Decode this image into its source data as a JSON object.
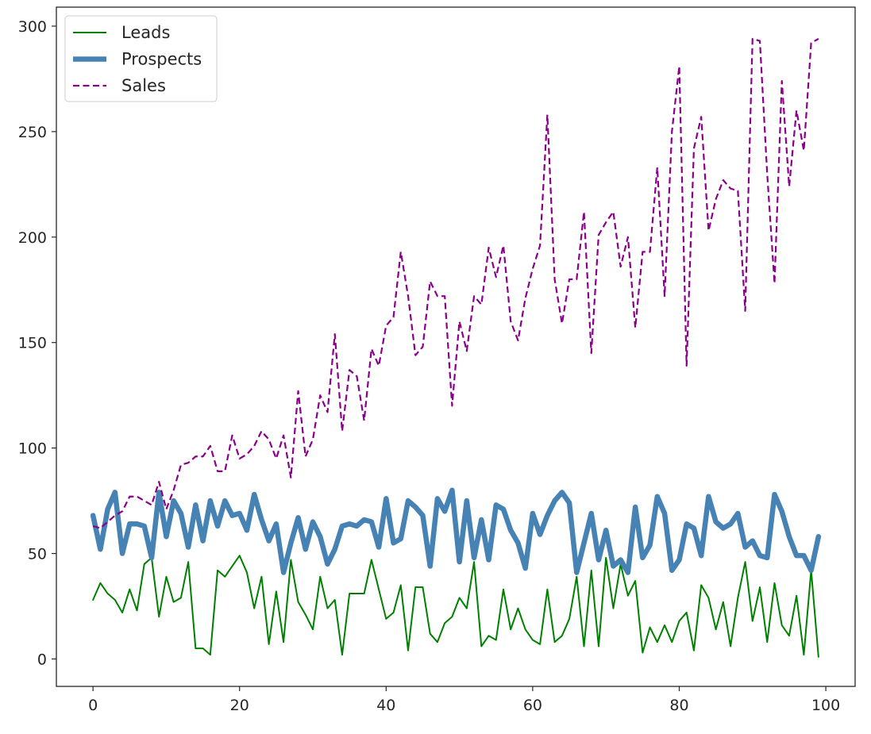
{
  "chart_data": {
    "type": "line",
    "title": "",
    "xlabel": "",
    "ylabel": "",
    "xlim": [
      -5,
      104
    ],
    "ylim": [
      -13,
      309
    ],
    "xticks": [
      0,
      20,
      40,
      60,
      80,
      100
    ],
    "yticks": [
      0,
      50,
      100,
      150,
      200,
      250,
      300
    ],
    "xtick_labels": [
      "0",
      "20",
      "40",
      "60",
      "80",
      "100"
    ],
    "ytick_labels": [
      "0",
      "50",
      "100",
      "150",
      "200",
      "250",
      "300"
    ],
    "grid": false,
    "legend_position": "upper-left",
    "series": [
      {
        "name": "Leads",
        "color": "#008000",
        "style": "solid",
        "x_start": 0,
        "values": [
          28,
          36,
          31,
          28,
          22,
          33,
          23,
          45,
          48,
          20,
          39,
          27,
          29,
          46,
          5,
          5,
          2,
          42,
          39,
          44,
          49,
          41,
          24,
          39,
          7,
          32,
          8,
          47,
          27,
          21,
          14,
          39,
          24,
          28,
          2,
          31,
          31,
          31,
          47,
          33,
          19,
          22,
          35,
          4,
          34,
          34,
          12,
          8,
          17,
          20,
          29,
          24,
          46,
          6,
          11,
          9,
          33,
          14,
          24,
          14,
          9,
          7,
          33,
          8,
          11,
          19,
          39,
          6,
          42,
          6,
          48,
          24,
          45,
          30,
          37,
          3,
          15,
          8,
          16,
          8,
          18,
          22,
          4,
          35,
          29,
          14,
          27,
          6,
          29,
          46,
          18,
          34,
          8,
          36,
          16,
          11,
          30,
          2,
          42,
          1
        ]
      },
      {
        "name": "Prospects",
        "color": "#4682b4",
        "style": "thick",
        "x_start": 0,
        "values": [
          68,
          52,
          71,
          79,
          50,
          64,
          64,
          63,
          48,
          79,
          58,
          75,
          69,
          53,
          73,
          56,
          75,
          63,
          75,
          68,
          69,
          61,
          78,
          66,
          56,
          64,
          41,
          55,
          67,
          52,
          65,
          58,
          45,
          52,
          63,
          64,
          63,
          66,
          65,
          53,
          76,
          55,
          57,
          75,
          72,
          68,
          44,
          76,
          70,
          80,
          46,
          75,
          48,
          66,
          47,
          73,
          71,
          61,
          55,
          43,
          69,
          59,
          68,
          75,
          79,
          74,
          41,
          55,
          69,
          47,
          61,
          44,
          47,
          41,
          72,
          48,
          54,
          77,
          69,
          42,
          47,
          64,
          62,
          49,
          77,
          65,
          62,
          64,
          69,
          53,
          56,
          49,
          48,
          78,
          70,
          58,
          49,
          49,
          42,
          58
        ]
      },
      {
        "name": "Sales",
        "color": "#8b008b",
        "style": "dashed",
        "x_start": 0,
        "values": [
          63,
          62,
          65,
          68,
          70,
          77,
          77,
          75,
          73,
          84,
          71,
          80,
          92,
          93,
          96,
          96,
          101,
          89,
          89,
          106,
          95,
          97,
          101,
          108,
          104,
          95,
          106,
          86,
          127,
          96,
          104,
          125,
          117,
          154,
          108,
          137,
          134,
          113,
          147,
          139,
          158,
          162,
          193,
          172,
          144,
          148,
          179,
          172,
          172,
          120,
          160,
          146,
          172,
          168,
          195,
          181,
          196,
          160,
          151,
          171,
          185,
          196,
          258,
          180,
          159,
          180,
          180,
          212,
          145,
          201,
          207,
          212,
          186,
          200,
          157,
          193,
          193,
          233,
          172,
          250,
          281,
          139,
          242,
          257,
          203,
          218,
          227,
          223,
          222,
          165,
          294,
          293,
          230,
          178,
          274,
          224,
          260,
          241,
          292,
          294
        ]
      }
    ]
  }
}
